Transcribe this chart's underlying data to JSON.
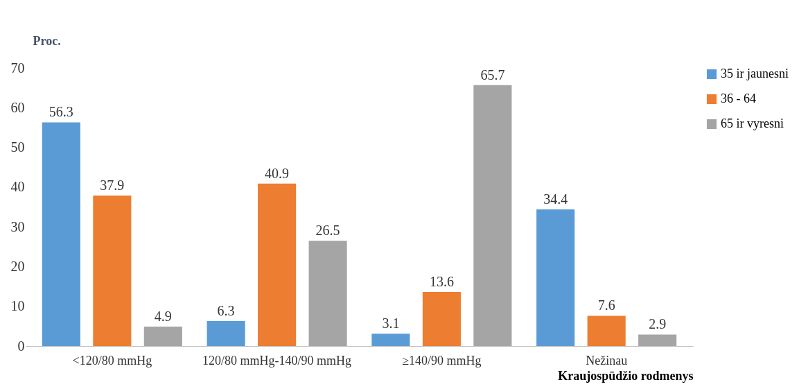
{
  "chart_data": {
    "type": "bar",
    "xlabel": "Kraujospūdžio rodmenys",
    "ylabel": "Proc.",
    "categories": [
      "<120/80 mmHg",
      "120/80 mmHg-140/90 mmHg",
      "≥140/90 mmHg",
      "Nežinau"
    ],
    "series": [
      {
        "name": "35 ir jaunesni",
        "color": "#5b9bd5",
        "values": [
          56.3,
          6.3,
          3.1,
          34.4
        ]
      },
      {
        "name": "36 - 64",
        "color": "#ed7d31",
        "values": [
          37.9,
          40.9,
          13.6,
          7.6
        ]
      },
      {
        "name": "65 ir vyresni",
        "color": "#a5a5a5",
        "values": [
          4.9,
          26.5,
          65.7,
          2.9
        ]
      }
    ],
    "ylim": [
      0,
      70
    ],
    "yticks": [
      0,
      10,
      20,
      30,
      40,
      50,
      60,
      70
    ],
    "grid": false,
    "legend": "right",
    "data_labels": true
  }
}
